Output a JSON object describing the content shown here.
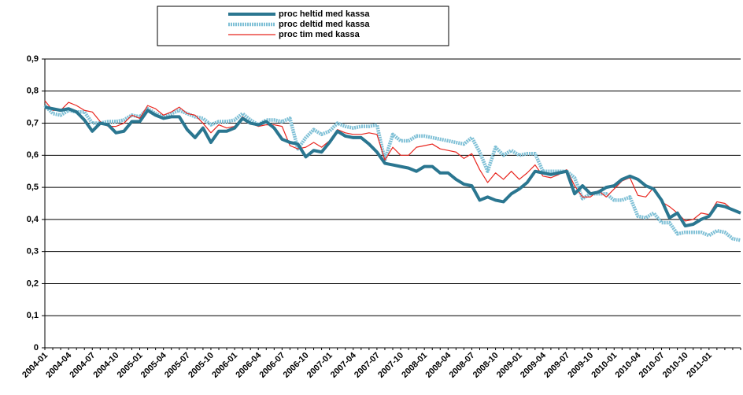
{
  "chart_data": {
    "type": "line",
    "categories": [
      "2004-01",
      null,
      null,
      "2004-04",
      null,
      null,
      "2004-07",
      null,
      null,
      "2004-10",
      null,
      null,
      "2005-01",
      null,
      null,
      "2005-04",
      null,
      null,
      "2005-07",
      null,
      null,
      "2005-10",
      null,
      null,
      "2006-01",
      null,
      null,
      "2006-04",
      null,
      null,
      "2006-07",
      null,
      null,
      "2006-10",
      null,
      null,
      "2007-01",
      null,
      null,
      "2007-04",
      null,
      null,
      "2007-07",
      null,
      null,
      "2007-10",
      null,
      null,
      "2008-01",
      null,
      null,
      "2008-04",
      null,
      null,
      "2008-07",
      null,
      null,
      "2008-10",
      null,
      null,
      "2009-01",
      null,
      null,
      "2009-04",
      null,
      null,
      "2009-07",
      null,
      null,
      "2009-10",
      null,
      null,
      "2010-01",
      null,
      null,
      "2010-04",
      null,
      null,
      "2010-07",
      null,
      null,
      "2010-10",
      null,
      null,
      "2011-01",
      null,
      null,
      null,
      null
    ],
    "series": [
      {
        "name": "proc heltid med kassa",
        "color": "#2a7690",
        "width": 4,
        "values": [
          0.75,
          0.745,
          0.74,
          0.745,
          0.735,
          0.71,
          0.675,
          0.7,
          0.695,
          0.67,
          0.675,
          0.705,
          0.705,
          0.74,
          0.725,
          0.715,
          0.72,
          0.72,
          0.68,
          0.655,
          0.685,
          0.64,
          0.675,
          0.675,
          0.685,
          0.715,
          0.7,
          0.695,
          0.705,
          0.685,
          0.65,
          0.64,
          0.635,
          0.595,
          0.615,
          0.61,
          0.64,
          0.675,
          0.66,
          0.655,
          0.655,
          0.635,
          0.61,
          0.575,
          0.57,
          0.565,
          0.56,
          0.55,
          0.565,
          0.565,
          0.545,
          0.545,
          0.525,
          0.51,
          0.505,
          0.46,
          0.47,
          0.46,
          0.455,
          0.48,
          0.495,
          0.515,
          0.55,
          0.545,
          0.54,
          0.545,
          0.55,
          0.48,
          0.505,
          0.48,
          0.485,
          0.5,
          0.505,
          0.525,
          0.535,
          0.525,
          0.505,
          0.495,
          0.46,
          0.405,
          0.42,
          0.38,
          0.385,
          0.4,
          0.41,
          0.445,
          0.44,
          0.43,
          0.42
        ]
      },
      {
        "name": "proc deltid med kassa",
        "color": "#7fc0d6",
        "width": 4.5,
        "values": [
          0.755,
          0.73,
          0.725,
          0.74,
          0.735,
          0.735,
          0.7,
          0.7,
          0.705,
          0.705,
          0.71,
          0.725,
          0.72,
          0.745,
          0.73,
          0.72,
          0.73,
          0.74,
          0.73,
          0.72,
          0.715,
          0.695,
          0.705,
          0.705,
          0.71,
          0.73,
          0.71,
          0.695,
          0.71,
          0.71,
          0.705,
          0.715,
          0.62,
          0.655,
          0.68,
          0.665,
          0.675,
          0.7,
          0.69,
          0.685,
          0.69,
          0.69,
          0.695,
          0.585,
          0.665,
          0.645,
          0.645,
          0.66,
          0.66,
          0.655,
          0.65,
          0.645,
          0.64,
          0.635,
          0.655,
          0.61,
          0.55,
          0.625,
          0.6,
          0.615,
          0.6,
          0.605,
          0.605,
          0.55,
          0.55,
          0.55,
          0.55,
          0.53,
          0.465,
          0.48,
          0.48,
          0.48,
          0.46,
          0.46,
          0.47,
          0.41,
          0.405,
          0.42,
          0.39,
          0.39,
          0.355,
          0.36,
          0.36,
          0.36,
          0.35,
          0.365,
          0.36,
          0.34,
          0.335
        ]
      },
      {
        "name": "proc tim med kassa",
        "color": "#e8261f",
        "width": 1.2,
        "values": [
          0.77,
          0.74,
          0.74,
          0.765,
          0.755,
          0.74,
          0.735,
          0.705,
          0.69,
          0.69,
          0.7,
          0.725,
          0.715,
          0.755,
          0.745,
          0.725,
          0.735,
          0.75,
          0.73,
          0.725,
          0.7,
          0.67,
          0.695,
          0.685,
          0.69,
          0.72,
          0.7,
          0.69,
          0.695,
          0.695,
          0.69,
          0.63,
          0.62,
          0.625,
          0.64,
          0.625,
          0.645,
          0.68,
          0.67,
          0.665,
          0.665,
          0.67,
          0.665,
          0.585,
          0.625,
          0.6,
          0.6,
          0.625,
          0.63,
          0.635,
          0.62,
          0.615,
          0.61,
          0.59,
          0.605,
          0.555,
          0.515,
          0.545,
          0.525,
          0.55,
          0.525,
          0.545,
          0.57,
          0.535,
          0.53,
          0.54,
          0.555,
          0.505,
          0.47,
          0.47,
          0.49,
          0.47,
          0.495,
          0.52,
          0.53,
          0.475,
          0.47,
          0.5,
          0.455,
          0.44,
          0.42,
          0.395,
          0.4,
          0.42,
          0.415,
          0.455,
          0.45,
          0.43,
          0.42
        ]
      }
    ],
    "ylim": [
      0,
      0.9
    ],
    "yticks": [
      0,
      {
        "value": 0.1,
        "label": "0,1"
      },
      {
        "value": 0.2,
        "label": "0,2"
      },
      {
        "value": 0.3,
        "label": "0,3"
      },
      {
        "value": 0.4,
        "label": "0,4"
      },
      {
        "value": 0.5,
        "label": "0,5"
      },
      {
        "value": 0.6,
        "label": "0,6"
      },
      {
        "value": 0.7,
        "label": "0,7"
      },
      {
        "value": 0.8,
        "label": "0,8"
      },
      {
        "value": 0.9,
        "label": "0,9"
      }
    ],
    "grid": true,
    "legend": "top"
  }
}
